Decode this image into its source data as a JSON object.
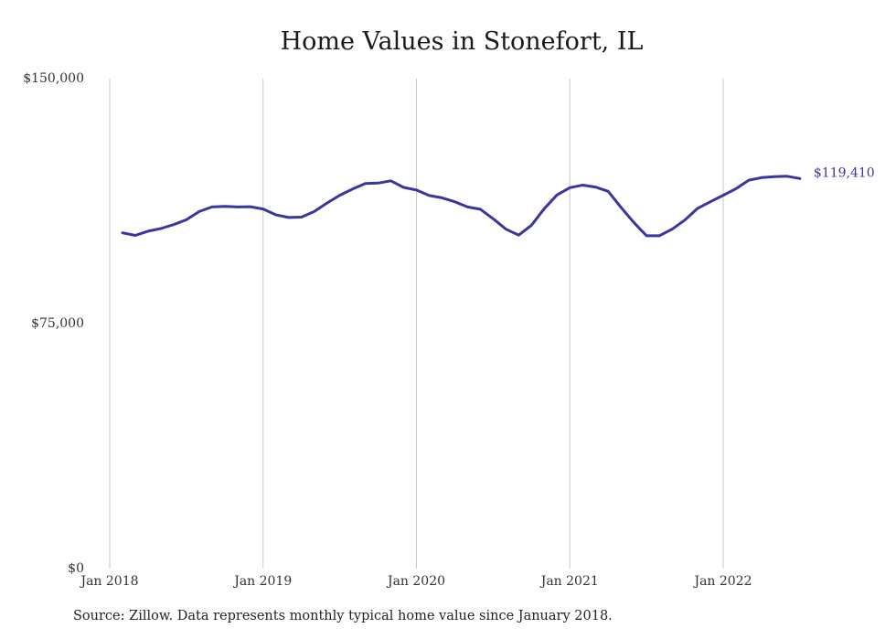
{
  "chart_data": {
    "type": "line",
    "title": "Home Values in Stonefort, IL",
    "xlabel": "",
    "ylabel": "",
    "ylim": [
      0,
      150000
    ],
    "y_ticks": [
      {
        "value": 0,
        "label": "$0"
      },
      {
        "value": 75000,
        "label": "$75,000"
      },
      {
        "value": 150000,
        "label": "$150,000"
      }
    ],
    "x_ticks": [
      {
        "date": "2018-01",
        "label": "Jan 2018"
      },
      {
        "date": "2019-01",
        "label": "Jan 2019"
      },
      {
        "date": "2020-01",
        "label": "Jan 2020"
      },
      {
        "date": "2021-01",
        "label": "Jan 2021"
      },
      {
        "date": "2022-01",
        "label": "Jan 2022"
      }
    ],
    "grid": "vertical",
    "line_color": "#3b35a0",
    "series": [
      {
        "x": [
          "2018-02",
          "2018-03",
          "2018-04",
          "2018-05",
          "2018-06",
          "2018-07",
          "2018-08",
          "2018-09",
          "2018-10",
          "2018-11",
          "2018-12",
          "2019-01",
          "2019-02",
          "2019-03",
          "2019-04",
          "2019-05",
          "2019-06",
          "2019-07",
          "2019-08",
          "2019-09",
          "2019-10",
          "2019-11",
          "2019-12",
          "2020-01",
          "2020-02",
          "2020-03",
          "2020-04",
          "2020-05",
          "2020-06",
          "2020-07",
          "2020-08",
          "2020-09",
          "2020-10",
          "2020-11",
          "2020-12",
          "2021-01",
          "2021-02",
          "2021-03",
          "2021-04",
          "2021-05",
          "2021-06",
          "2021-07",
          "2021-08",
          "2021-09",
          "2021-10",
          "2021-11",
          "2021-12",
          "2022-01",
          "2022-02",
          "2022-03",
          "2022-04",
          "2022-05",
          "2022-06",
          "2022-07"
        ],
        "values": [
          102800,
          102000,
          103300,
          104100,
          105300,
          106800,
          109300,
          110700,
          110900,
          110700,
          110800,
          110100,
          108300,
          107500,
          107600,
          109300,
          111900,
          114300,
          116200,
          117900,
          118000,
          118700,
          116700,
          115900,
          114200,
          113500,
          112300,
          110700,
          110000,
          107100,
          103900,
          102100,
          105100,
          110200,
          114400,
          116600,
          117400,
          116800,
          115500,
          110600,
          106000,
          101900,
          101900,
          103900,
          106700,
          110300,
          112300,
          114300,
          116300,
          118900,
          119700,
          120000,
          120100,
          119410
        ]
      }
    ],
    "end_label": "$119,410"
  },
  "source": "Source: Zillow. Data represents monthly typical home value since January 2018."
}
